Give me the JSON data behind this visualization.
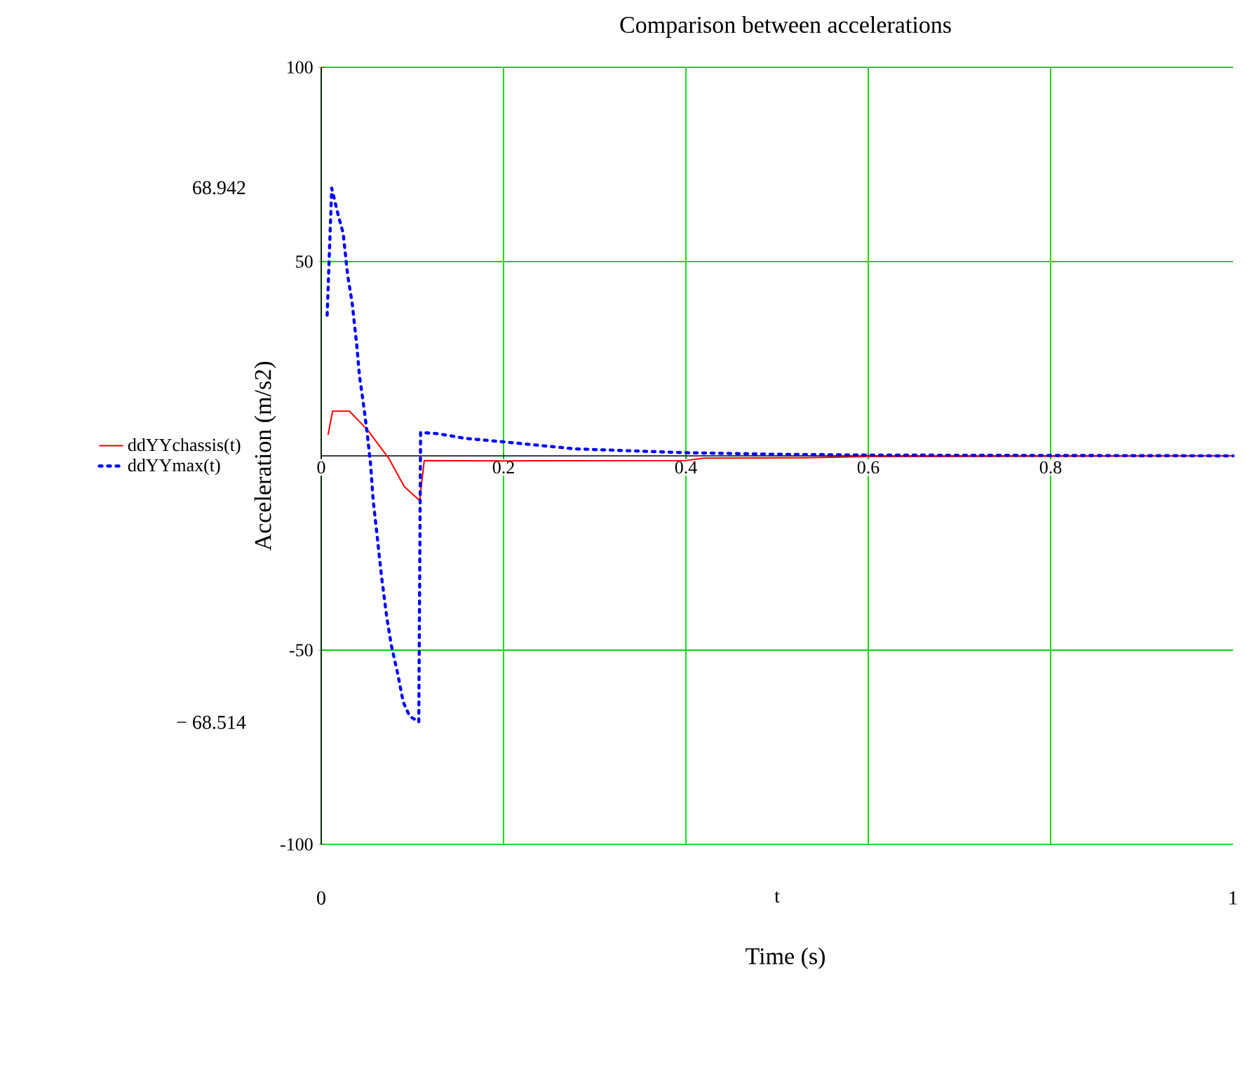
{
  "chart_data": {
    "type": "line",
    "title": "Comparison between accelerations",
    "xlabel": "Time (s)",
    "ylabel": "Acceleration (m/s2)",
    "xlim": [
      0,
      1
    ],
    "ylim": [
      -100,
      100
    ],
    "xticks": [
      0,
      0.2,
      0.4,
      0.6,
      0.8
    ],
    "yticks": [
      100,
      50,
      -50,
      -100
    ],
    "grid": true,
    "legend": "left",
    "series": [
      {
        "name": "ddYYchassis(t)",
        "color": "#ff0000",
        "line_style": "solid",
        "x": [
          0.0075,
          0.0125,
          0.031,
          0.051,
          0.074,
          0.091,
          0.108,
          0.113,
          0.2,
          0.4,
          0.42,
          0.53,
          0.6,
          1.0
        ],
        "values": [
          5.4,
          11.5,
          11.5,
          6.6,
          -0.6,
          -7.9,
          -11.5,
          -1.2,
          -1.3,
          -1.2,
          -0.6,
          -0.5,
          -0.2,
          0
        ]
      },
      {
        "name": "ddYYmax(t)",
        "color": "#0000ff",
        "line_style": "dotted",
        "x": [
          0.0065,
          0.0115,
          0.019,
          0.024,
          0.029,
          0.034,
          0.039,
          0.042,
          0.046,
          0.05,
          0.054,
          0.057,
          0.061,
          0.066,
          0.072,
          0.077,
          0.084,
          0.09,
          0.097,
          0.107,
          0.109,
          0.128,
          0.158,
          0.2,
          0.278,
          0.4,
          0.5,
          0.6,
          1.0
        ],
        "values": [
          36.2,
          68.9,
          61.6,
          57.4,
          46.5,
          39.2,
          28.4,
          20.5,
          13.9,
          6.6,
          -1.8,
          -11.5,
          -19.9,
          -30.8,
          -41.7,
          -48.9,
          -56.2,
          -63.4,
          -67,
          -68.5,
          6.0,
          5.7,
          4.5,
          3.6,
          1.8,
          0.8,
          0.4,
          0.2,
          0
        ]
      }
    ],
    "annotations": [
      "68.942",
      "− 68.514",
      "0",
      "t",
      "1"
    ]
  }
}
